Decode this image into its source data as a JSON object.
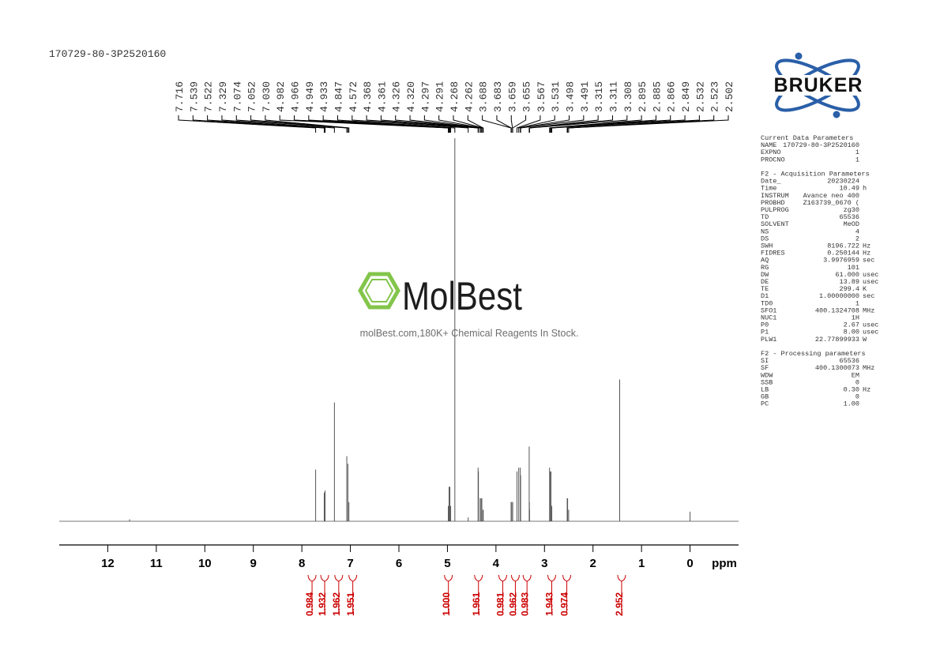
{
  "header": {
    "title": "170729-80-3P2520160"
  },
  "logo": {
    "text": "BRUKER"
  },
  "watermark": {
    "brand": "MolBest",
    "tagline": "molBest.com,180K+ Chemical Reagents In Stock."
  },
  "parameters": [
    {
      "title": "Current Data Parameters",
      "rows": [
        [
          "NAME",
          "170729-80-3P2520160"
        ],
        [
          "EXPNO",
          "1"
        ],
        [
          "PROCNO",
          "1"
        ]
      ]
    },
    {
      "title": "F2 - Acquisition Parameters",
      "rows": [
        [
          "Date_",
          "20230224"
        ],
        [
          "Time",
          "10.49",
          "h"
        ],
        [
          "INSTRUM",
          "Avance neo 400"
        ],
        [
          "PROBHD",
          "Z163739_0670 ("
        ],
        [
          "PULPROG",
          "zg30"
        ],
        [
          "TD",
          "65536"
        ],
        [
          "SOLVENT",
          "MeOD"
        ],
        [
          "NS",
          "4"
        ],
        [
          "DS",
          "2"
        ],
        [
          "SWH",
          "8196.722",
          "Hz"
        ],
        [
          "FIDRES",
          "0.250144",
          "Hz"
        ],
        [
          "AQ",
          "3.9976959",
          "sec"
        ],
        [
          "RG",
          "101"
        ],
        [
          "DW",
          "61.000",
          "usec"
        ],
        [
          "DE",
          "13.89",
          "usec"
        ],
        [
          "TE",
          "299.4",
          "K"
        ],
        [
          "D1",
          "1.00000000",
          "sec"
        ],
        [
          "TD0",
          "1"
        ],
        [
          "SFO1",
          "400.1324708",
          "MHz"
        ],
        [
          "NUC1",
          "1H"
        ],
        [
          "P0",
          "2.67",
          "usec"
        ],
        [
          "P1",
          "8.00",
          "usec"
        ],
        [
          "PLW1",
          "22.77899933",
          "W"
        ]
      ]
    },
    {
      "title": "F2 - Processing parameters",
      "rows": [
        [
          "SI",
          "65536"
        ],
        [
          "SF",
          "400.1300073",
          "MHz"
        ],
        [
          "WDW",
          "EM"
        ],
        [
          "SSB",
          "0"
        ],
        [
          "LB",
          "0.30",
          "Hz"
        ],
        [
          "GB",
          "0"
        ],
        [
          "PC",
          "1.00"
        ]
      ]
    }
  ],
  "chart_data": {
    "type": "nmr",
    "x_label": "ppm",
    "xlim": [
      13,
      -1
    ],
    "xticks": [
      12,
      11,
      10,
      9,
      8,
      7,
      6,
      5,
      4,
      3,
      2,
      1,
      0
    ],
    "ylim": [
      0,
      100
    ],
    "color": "#555555",
    "peak_labels": [
      7.716,
      7.539,
      7.522,
      7.329,
      7.074,
      7.052,
      {
        "value": 7.03,
        "label": "7.030"
      },
      4.982,
      4.966,
      4.949,
      4.933,
      4.847,
      4.572,
      4.368,
      4.361,
      4.326,
      {
        "value": 4.32,
        "label": "4.320"
      },
      4.297,
      4.291,
      4.268,
      4.262,
      3.688,
      3.683,
      3.659,
      3.655,
      3.567,
      3.531,
      3.498,
      3.491,
      3.315,
      3.311,
      3.308,
      2.895,
      2.885,
      2.866,
      2.849,
      2.532,
      2.523,
      2.502
    ],
    "x": [
      11.55,
      7.716,
      7.539,
      7.522,
      7.329,
      7.074,
      7.052,
      7.03,
      4.982,
      4.966,
      4.949,
      4.933,
      4.847,
      4.572,
      4.368,
      4.361,
      4.326,
      4.32,
      4.297,
      4.291,
      4.268,
      4.262,
      3.688,
      3.683,
      3.659,
      3.655,
      3.567,
      3.531,
      3.498,
      3.491,
      3.315,
      3.311,
      3.308,
      2.895,
      2.885,
      2.866,
      2.849,
      2.532,
      2.523,
      2.502,
      1.45,
      0
    ],
    "values": [
      0.5,
      13.5,
      7.5,
      8,
      31,
      17,
      15,
      5,
      4,
      9,
      9,
      4,
      100,
      1,
      14,
      13,
      6,
      6,
      6,
      6,
      3,
      3,
      5,
      5,
      5,
      5,
      13,
      14,
      14,
      12,
      19.5,
      5,
      3,
      14,
      13,
      13,
      4,
      6,
      6,
      3,
      37,
      2.5
    ],
    "integrals": {
      "color": "#cc0000",
      "x": [
        7.79,
        7.53,
        7.24,
        6.95,
        4.98,
        4.36,
        3.86,
        3.6,
        3.36,
        2.85,
        2.54,
        1.41
      ],
      "values": [
        0.984,
        1.932,
        1.962,
        1.951,
        {
          "value": 1,
          "label": "1.000"
        },
        1.961,
        0.981,
        0.962,
        0.983,
        1.943,
        0.974,
        2.952
      ]
    }
  }
}
